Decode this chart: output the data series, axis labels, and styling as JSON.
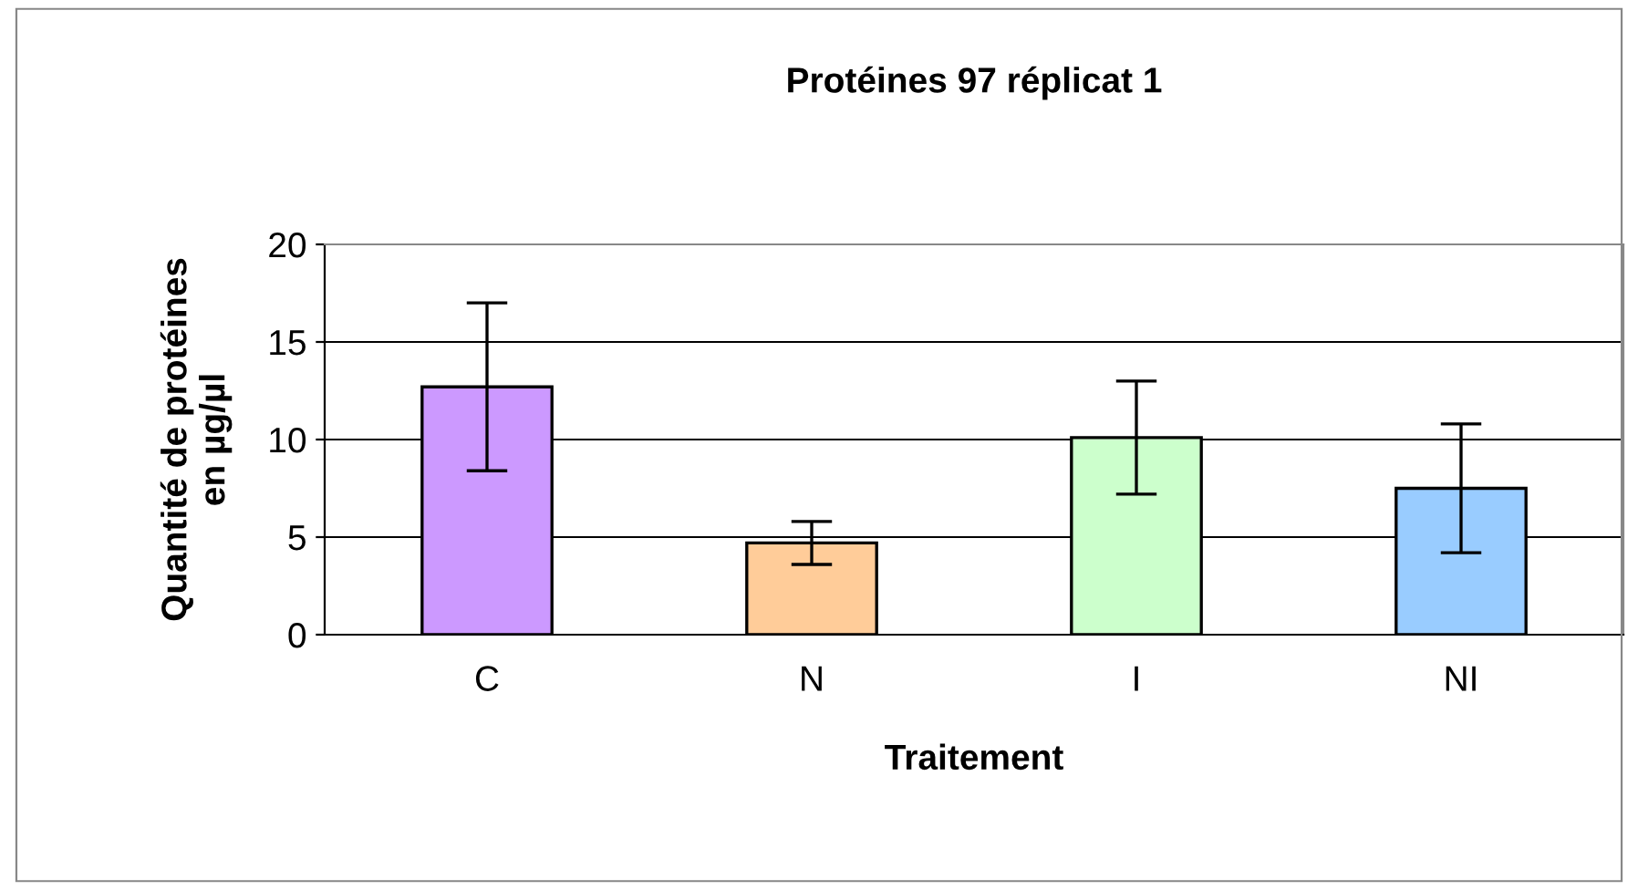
{
  "chart_data": {
    "type": "bar",
    "title": "Protéines 97 réplicat 1",
    "xlabel": "Traitement",
    "ylabel": "Quantité de protéines\nen µg/µl",
    "categories": [
      "C",
      "N",
      "I",
      "NI"
    ],
    "values": [
      12.7,
      4.7,
      10.1,
      7.5
    ],
    "errors": [
      4.3,
      1.1,
      2.9,
      3.3
    ],
    "colors": [
      "#cc99ff",
      "#ffcc99",
      "#ccffcc",
      "#99ccff"
    ],
    "ylim": [
      0,
      20
    ],
    "yticks": [
      0,
      5,
      10,
      15,
      20
    ],
    "grid": "y",
    "legend": false
  }
}
